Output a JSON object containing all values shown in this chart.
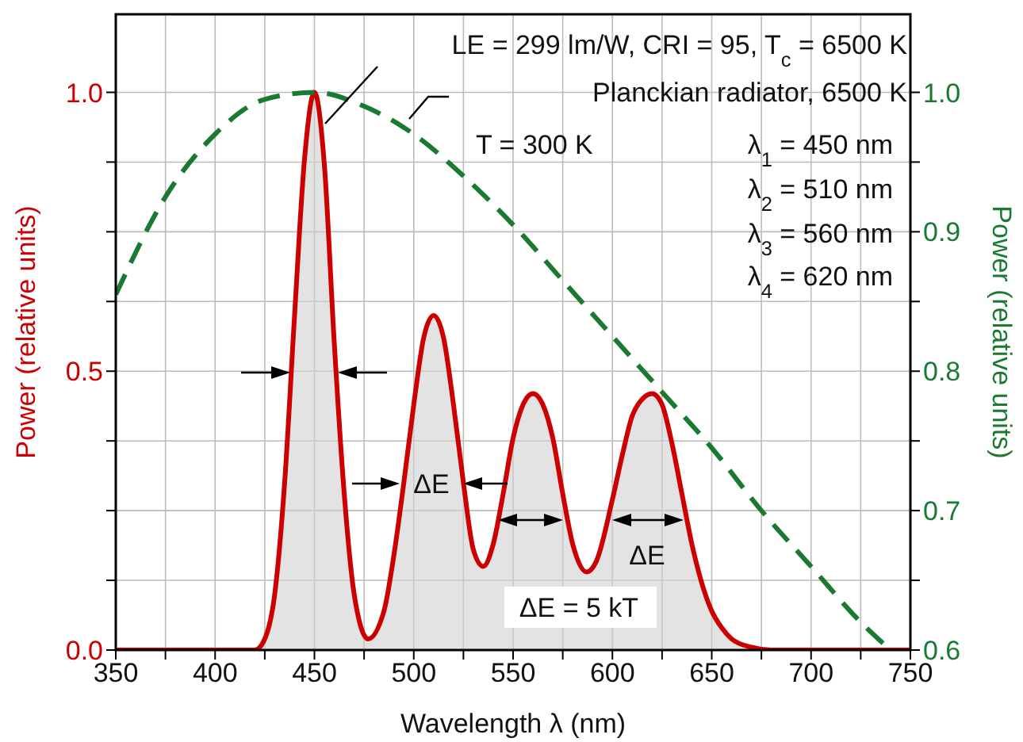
{
  "chart_data": {
    "type": "line",
    "xlabel": "Wavelength λ (nm)",
    "ylabel": "Power (relative units)",
    "y2label": "Power (relative units)",
    "xlim": [
      350,
      750
    ],
    "xticks": [
      350,
      {
        "value": 375,
        "label": null
      },
      400,
      {
        "value": 425,
        "label": null
      },
      450,
      {
        "value": 475,
        "label": null
      },
      500,
      {
        "value": 525,
        "label": null
      },
      550,
      {
        "value": 575,
        "label": null
      },
      600,
      {
        "value": 625,
        "label": null
      },
      650,
      {
        "value": 675,
        "label": null
      },
      700,
      {
        "value": 725,
        "label": null
      },
      750
    ],
    "ylim": [
      0,
      1.14
    ],
    "yticks": [
      {
        "value": 0,
        "label": "0.0"
      },
      {
        "value": 0.125,
        "label": null
      },
      {
        "value": 0.25,
        "label": null
      },
      {
        "value": 0.375,
        "label": null
      },
      {
        "value": 0.5,
        "label": "0.5"
      },
      {
        "value": 0.625,
        "label": null
      },
      {
        "value": 0.75,
        "label": null
      },
      {
        "value": 0.875,
        "label": null
      },
      {
        "value": 1,
        "label": "1.0"
      }
    ],
    "y2lim": [
      0.6,
      1.056
    ],
    "y2ticks": [
      0.6,
      {
        "value": 0.65,
        "label": null
      },
      0.7,
      {
        "value": 0.75,
        "label": null
      },
      0.8,
      {
        "value": 0.85,
        "label": null
      },
      0.9,
      {
        "value": 0.95,
        "label": null
      },
      {
        "value": 1,
        "label": "1.0"
      }
    ],
    "grid": true,
    "series": [
      {
        "type": "area",
        "color": "#cc0000",
        "axis": "y",
        "line_style": "solid",
        "x": [
          350,
          380,
          420,
          425,
          430,
          435,
          440,
          445,
          450,
          455,
          460,
          465,
          470,
          477,
          485,
          490,
          495,
          500,
          505,
          510,
          515,
          520,
          525,
          530,
          535,
          540,
          545,
          550,
          555,
          560,
          565,
          570,
          575,
          580,
          587,
          592,
          600,
          605,
          610,
          615,
          620,
          625,
          630,
          635,
          640,
          645,
          650,
          655,
          660,
          670,
          680,
          750
        ],
        "values": [
          0,
          0,
          0,
          0.02,
          0.1,
          0.3,
          0.6,
          0.88,
          1,
          0.87,
          0.55,
          0.28,
          0.1,
          0.02,
          0.07,
          0.17,
          0.3,
          0.44,
          0.56,
          0.6,
          0.56,
          0.44,
          0.3,
          0.18,
          0.15,
          0.19,
          0.28,
          0.38,
          0.44,
          0.46,
          0.44,
          0.38,
          0.28,
          0.19,
          0.14,
          0.16,
          0.27,
          0.35,
          0.42,
          0.45,
          0.46,
          0.44,
          0.37,
          0.28,
          0.19,
          0.12,
          0.07,
          0.04,
          0.02,
          0.005,
          0,
          0
        ]
      },
      {
        "color": "#1a7a32",
        "axis": "y2",
        "line_style": "dashed",
        "x": [
          350,
          375,
          400,
          425,
          450,
          475,
          500,
          525,
          550,
          575,
          600,
          625,
          650,
          675,
          700,
          725,
          740
        ],
        "values": [
          0.855,
          0.925,
          0.97,
          0.995,
          1,
          0.99,
          0.97,
          0.94,
          0.905,
          0.865,
          0.825,
          0.785,
          0.745,
          0.7,
          0.66,
          0.62,
          0.6
        ]
      }
    ],
    "annotations": [
      "LE = 299 lm/W, CRI = 95, T$_{c}$ = 6500 K",
      "Planckian radiator, 6500 K",
      "T = 300 K",
      "λ$_{1}$ = 450 nm",
      "λ$_{2}$ = 510 nm",
      "λ$_{3}$ = 560 nm",
      "λ$_{4}$ = 620 nm",
      "ΔE",
      "ΔE",
      "ΔE = 5 kT"
    ]
  }
}
